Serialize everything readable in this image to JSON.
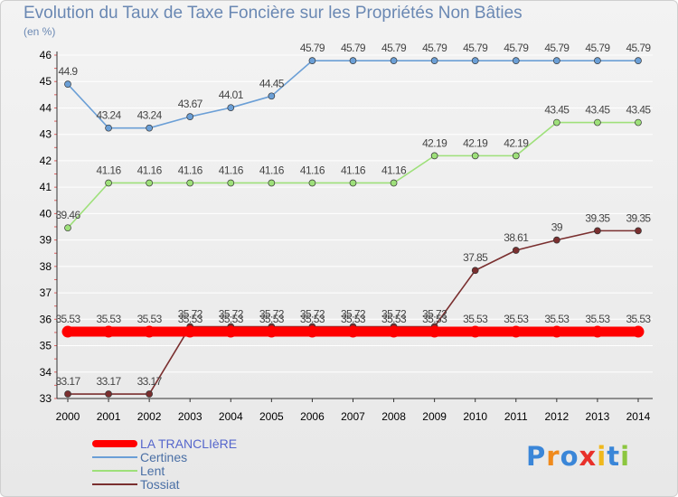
{
  "title": "Evolution du Taux de Taxe Foncière sur les Propriétés Non Bâties",
  "unit": "(en %)",
  "logo": "Proxiti",
  "colors": {
    "grid": "#ffffff",
    "axis": "#333333",
    "tick_text": "#000000",
    "label_text": "#444444",
    "title": "#6a88b3"
  },
  "chart_data": {
    "type": "line",
    "title": "Evolution du Taux de Taxe Foncière sur les Propriétés Non Bâties",
    "ylabel": "(en %)",
    "xlabel": "",
    "x": [
      "2000",
      "2001",
      "2002",
      "2003",
      "2004",
      "2005",
      "2006",
      "2007",
      "2008",
      "2009",
      "2010",
      "2011",
      "2012",
      "2013",
      "2014"
    ],
    "ylim": [
      33,
      46
    ],
    "yticks": [
      "33",
      "34",
      "35",
      "36",
      "37",
      "38",
      "39",
      "40",
      "41",
      "42",
      "43",
      "44",
      "45",
      "46"
    ],
    "legend_position": "bottom-left",
    "series": [
      {
        "name": "LA TRANCLIèRE",
        "color": "#ff0000",
        "values": [
          35.53,
          35.53,
          35.53,
          35.53,
          35.53,
          35.53,
          35.53,
          35.53,
          35.53,
          35.53,
          35.53,
          35.53,
          35.53,
          35.53,
          35.53
        ],
        "labels": [
          "35.53",
          "35.53",
          "35.53",
          "35.53",
          "35.53",
          "35.53",
          "35.53",
          "35.53",
          "35.53",
          "35.53",
          "35.53",
          "35.53",
          "35.53",
          "35.53",
          "35.53"
        ]
      },
      {
        "name": "Certines",
        "color": "#6b9fd6",
        "values": [
          44.9,
          43.24,
          43.24,
          43.67,
          44.01,
          44.45,
          45.79,
          45.79,
          45.79,
          45.79,
          45.79,
          45.79,
          45.79,
          45.79,
          45.79
        ],
        "labels": [
          "44.9",
          "43.24",
          "43.24",
          "43.67",
          "44.01",
          "44.45",
          "45.79",
          "45.79",
          "45.79",
          "45.79",
          "45.79",
          "45.79",
          "45.79",
          "45.79",
          "45.79"
        ]
      },
      {
        "name": "Lent",
        "color": "#9ee07a",
        "values": [
          39.46,
          41.16,
          41.16,
          41.16,
          41.16,
          41.16,
          41.16,
          41.16,
          41.16,
          42.19,
          42.19,
          42.19,
          43.45,
          43.45,
          43.45
        ],
        "labels": [
          "39.46",
          "41.16",
          "41.16",
          "41.16",
          "41.16",
          "41.16",
          "41.16",
          "41.16",
          "41.16",
          "42.19",
          "42.19",
          "42.19",
          "43.45",
          "43.45",
          "43.45"
        ]
      },
      {
        "name": "Tossiat",
        "color": "#7a2f2f",
        "values": [
          33.17,
          33.17,
          33.17,
          35.72,
          35.72,
          35.72,
          35.72,
          35.72,
          35.72,
          35.72,
          37.85,
          38.61,
          39,
          39.35,
          39.35
        ],
        "labels": [
          "33.17",
          "33.17",
          "33.17",
          "35.72",
          "35.72",
          "35.72",
          "35.72",
          "35.72",
          "35.72",
          "35.72",
          "37.85",
          "38.61",
          "39",
          "39.35",
          "39.35"
        ]
      }
    ]
  }
}
